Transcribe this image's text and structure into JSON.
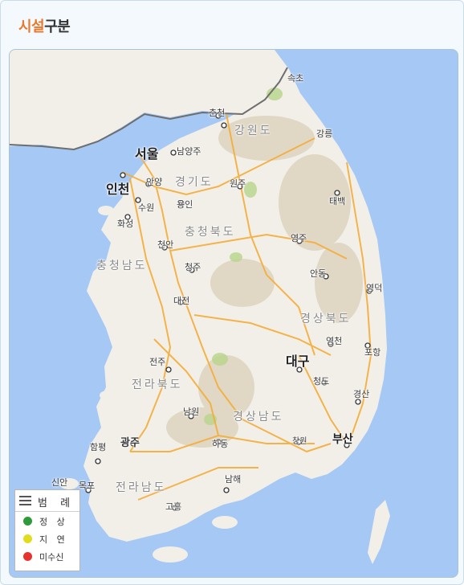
{
  "panel": {
    "title_accent": "시설",
    "title_rest": "구분"
  },
  "legend": {
    "title": "범 례",
    "items": [
      {
        "label": "정 상",
        "color": "#2e9a3a"
      },
      {
        "label": "지 연",
        "color": "#e2dc1e"
      },
      {
        "label": "미수신",
        "color": "#e8312d"
      }
    ]
  },
  "map": {
    "colors": {
      "sea": "#a6c8f5",
      "land": "#f1efe8",
      "road": "#f5ad3a",
      "border": "#6e6e6e"
    },
    "labels": {
      "sokcho": "속초",
      "chuncheon": "춘천",
      "gangwon": "강원도",
      "gangneung": "강릉",
      "seoul": "서울",
      "namyangju": "남양주",
      "incheon": "인천",
      "anyang": "안양",
      "gyeonggi": "경기도",
      "wonju": "원주",
      "suwon": "수원",
      "yongin": "용인",
      "taebaek": "태백",
      "hwaseong": "화성",
      "chungbuk": "충청북도",
      "yeongju": "영주",
      "cheonan": "천안",
      "chungnam": "충청남도",
      "cheongju": "청주",
      "andong": "안동",
      "yeongdeok": "영덕",
      "daejeon": "대전",
      "gyeongbuk": "경상북도",
      "yeongcheon": "영천",
      "pohang": "포항",
      "jeonju": "전주",
      "daegu": "대구",
      "jeonbuk": "전라북도",
      "cheongdo": "청도",
      "gyeongsan": "경산",
      "namwon": "남원",
      "gyeongnam": "경상남도",
      "hampyeong": "함평",
      "gwangju": "광주",
      "hadong": "하동",
      "changwon": "창원",
      "busan": "부산",
      "sinan": "신안",
      "mokpo": "목포",
      "jeonnam": "전라남도",
      "namhae": "남해",
      "goheung": "고흥"
    }
  }
}
